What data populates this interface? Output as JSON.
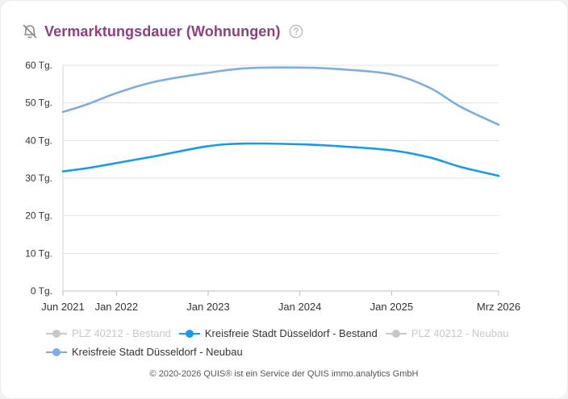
{
  "header": {
    "title": "Vermarktungsdauer (Wohnungen)",
    "icon": "bell-off-icon",
    "help_icon": "help-circle-icon",
    "title_color": "#8e3f7c"
  },
  "chart_data": {
    "type": "line",
    "title": "Vermarktungsdauer (Wohnungen)",
    "xlabel": "",
    "ylabel": "",
    "x_range": [
      "2021-06",
      "2026-03"
    ],
    "x_tick_labels": [
      {
        "x": "2021-06",
        "label": "Jun 2021"
      },
      {
        "x": "2022-01",
        "label": "Jan 2022"
      },
      {
        "x": "2023-01",
        "label": "Jan 2023"
      },
      {
        "x": "2024-01",
        "label": "Jan 2024"
      },
      {
        "x": "2025-01",
        "label": "Jan 2025"
      },
      {
        "x": "2026-03",
        "label": "Mrz 2026"
      }
    ],
    "ylim": [
      0,
      60
    ],
    "y_tick_labels": [
      "0 Tg.",
      "10 Tg.",
      "20 Tg.",
      "30 Tg.",
      "40 Tg.",
      "50 Tg.",
      "60 Tg."
    ],
    "y_ticks": [
      0,
      10,
      20,
      30,
      40,
      50,
      60
    ],
    "grid": true,
    "legend_position": "bottom",
    "series": [
      {
        "name": "PLZ 40212 - Bestand",
        "color": "#c8c8c8",
        "visible": false,
        "points": []
      },
      {
        "name": "Kreisfreie Stadt Düsseldorf - Bestand",
        "color": "#1a9be8",
        "visible": true,
        "points": [
          {
            "x": "2021-06",
            "y": 31.8
          },
          {
            "x": "2021-09",
            "y": 32.6
          },
          {
            "x": "2022-01",
            "y": 34.0
          },
          {
            "x": "2022-06",
            "y": 35.8
          },
          {
            "x": "2023-01",
            "y": 38.5
          },
          {
            "x": "2023-06",
            "y": 39.2
          },
          {
            "x": "2024-01",
            "y": 39.0
          },
          {
            "x": "2024-06",
            "y": 38.5
          },
          {
            "x": "2025-01",
            "y": 37.4
          },
          {
            "x": "2025-06",
            "y": 35.5
          },
          {
            "x": "2025-10",
            "y": 33.0
          },
          {
            "x": "2026-03",
            "y": 30.6
          }
        ]
      },
      {
        "name": "PLZ 40212 - Neubau",
        "color": "#c8c8c8",
        "visible": false,
        "points": []
      },
      {
        "name": "Kreisfreie Stadt Düsseldorf - Neubau",
        "color": "#7eaedd",
        "visible": true,
        "points": [
          {
            "x": "2021-06",
            "y": 47.6
          },
          {
            "x": "2021-09",
            "y": 49.5
          },
          {
            "x": "2022-01",
            "y": 52.6
          },
          {
            "x": "2022-06",
            "y": 55.6
          },
          {
            "x": "2023-01",
            "y": 58.0
          },
          {
            "x": "2023-06",
            "y": 59.2
          },
          {
            "x": "2024-01",
            "y": 59.4
          },
          {
            "x": "2024-06",
            "y": 59.0
          },
          {
            "x": "2025-01",
            "y": 57.6
          },
          {
            "x": "2025-06",
            "y": 54.0
          },
          {
            "x": "2025-10",
            "y": 49.0
          },
          {
            "x": "2026-03",
            "y": 44.2
          }
        ]
      }
    ]
  },
  "footer": {
    "text": "© 2020-2026 QUIS® ist ein Service der QUIS immo.analytics GmbH"
  }
}
